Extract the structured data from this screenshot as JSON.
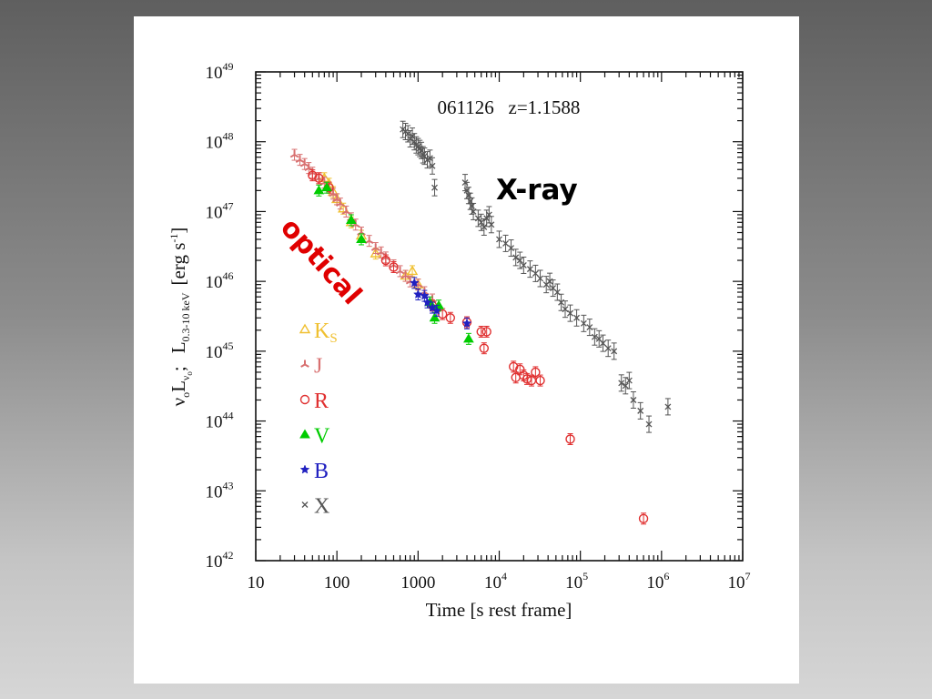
{
  "chart_data": {
    "type": "scatter",
    "title": "061126   z=1.1588",
    "xlabel": "Time [s rest frame]",
    "ylabel_parts": {
      "nu": "ν",
      "o1": "o",
      "L": "L",
      "nu_sub": "ν",
      "o2": "o",
      "semicolon": ";",
      "L2": "L",
      "band": "0.3-10 keV",
      "unit_open": "[erg s",
      "unit_exp": "-1",
      "unit_close": "]"
    },
    "x_scale": "log",
    "y_scale": "log",
    "xlim": [
      10,
      10000000
    ],
    "ylim": [
      1e+42,
      1e+49
    ],
    "x_ticks": [
      {
        "base": "10",
        "exp": ""
      },
      {
        "base": "100",
        "exp": ""
      },
      {
        "base": "1000",
        "exp": ""
      },
      {
        "base": "10",
        "exp": "4"
      },
      {
        "base": "10",
        "exp": "5"
      },
      {
        "base": "10",
        "exp": "6"
      },
      {
        "base": "10",
        "exp": "7"
      }
    ],
    "y_ticks": [
      {
        "base": "10",
        "exp": "42"
      },
      {
        "base": "10",
        "exp": "43"
      },
      {
        "base": "10",
        "exp": "44"
      },
      {
        "base": "10",
        "exp": "45"
      },
      {
        "base": "10",
        "exp": "46"
      },
      {
        "base": "10",
        "exp": "47"
      },
      {
        "base": "10",
        "exp": "48"
      },
      {
        "base": "10",
        "exp": "49"
      }
    ],
    "annotations": {
      "xray": "X-ray",
      "optical": "optical"
    },
    "legend_position": "lower-left",
    "series": [
      {
        "name": "K",
        "name_sub": "S",
        "symbol": "triangle-open",
        "color": "#f0c030",
        "points": [
          [
            70,
            3e+47
          ],
          [
            80,
            2.5e+47
          ],
          [
            90,
            1.9e+47
          ],
          [
            100,
            1.5e+47
          ],
          [
            120,
            1.1e+47
          ],
          [
            150,
            7e+46
          ],
          [
            200,
            4.5e+46
          ],
          [
            300,
            2.5e+46
          ],
          [
            700,
            1.2e+46
          ],
          [
            850,
            1.4e+46
          ],
          [
            1000,
            9e+45
          ]
        ]
      },
      {
        "name": "J",
        "name_sub": "",
        "symbol": "tri-star",
        "color": "#d87070",
        "points": [
          [
            30,
            6.5e+47
          ],
          [
            35,
            5.5e+47
          ],
          [
            40,
            4.8e+47
          ],
          [
            45,
            4.2e+47
          ],
          [
            50,
            3.6e+47
          ],
          [
            60,
            3e+47
          ],
          [
            70,
            2.6e+47
          ],
          [
            80,
            2.2e+47
          ],
          [
            90,
            1.8e+47
          ],
          [
            100,
            1.5e+47
          ],
          [
            110,
            1.3e+47
          ],
          [
            130,
            1e+47
          ],
          [
            150,
            8e+46
          ],
          [
            170,
            6.5e+46
          ],
          [
            200,
            5e+46
          ],
          [
            250,
            3.8e+46
          ],
          [
            300,
            3e+46
          ],
          [
            350,
            2.6e+46
          ],
          [
            400,
            2.2e+46
          ],
          [
            500,
            1.7e+46
          ],
          [
            600,
            1.4e+46
          ],
          [
            700,
            1.2e+46
          ],
          [
            800,
            1e+46
          ],
          [
            1000,
            9e+45
          ],
          [
            1200,
            7e+45
          ],
          [
            1500,
            5.5e+45
          ]
        ]
      },
      {
        "name": "R",
        "name_sub": "",
        "symbol": "circle-open",
        "color": "#e03030",
        "points": [
          [
            50,
            3.3e+47
          ],
          [
            60,
            3e+47
          ],
          [
            80,
            2.2e+47
          ],
          [
            400,
            2e+46
          ],
          [
            500,
            1.6e+46
          ],
          [
            1500,
            4.5e+45
          ],
          [
            2000,
            3.4e+45
          ],
          [
            2500,
            3e+45
          ],
          [
            4000,
            2.6e+45
          ],
          [
            6000,
            1.9e+45
          ],
          [
            7000,
            1.9e+45
          ],
          [
            6500,
            1.1e+45
          ],
          [
            15000,
            6e+44
          ],
          [
            18000,
            5.5e+44
          ],
          [
            16000,
            4.2e+44
          ],
          [
            20000,
            4.5e+44
          ],
          [
            22000,
            4e+44
          ],
          [
            25000,
            3.8e+44
          ],
          [
            28000,
            5e+44
          ],
          [
            32000,
            3.8e+44
          ],
          [
            75000,
            5.5e+43
          ],
          [
            600000,
            4e+42
          ]
        ]
      },
      {
        "name": "V",
        "name_sub": "",
        "symbol": "triangle-filled",
        "color": "#00cc00",
        "points": [
          [
            60,
            2e+47
          ],
          [
            75,
            2.2e+47
          ],
          [
            150,
            7.5e+46
          ],
          [
            200,
            4e+46
          ],
          [
            1400,
            5e+45
          ],
          [
            1600,
            3e+45
          ],
          [
            1800,
            4.5e+45
          ],
          [
            4200,
            1.5e+45
          ]
        ]
      },
      {
        "name": "B",
        "name_sub": "",
        "symbol": "star",
        "color": "#2020c0",
        "points": [
          [
            900,
            9.5e+45
          ],
          [
            1000,
            6.5e+45
          ],
          [
            1200,
            6.2e+45
          ],
          [
            1300,
            5e+45
          ],
          [
            1500,
            4.2e+45
          ],
          [
            1700,
            3.8e+45
          ],
          [
            4000,
            2.5e+45
          ]
        ]
      },
      {
        "name": "X",
        "name_sub": "",
        "symbol": "cross",
        "color": "#555555",
        "points": [
          [
            650,
            1.5e+48
          ],
          [
            700,
            1.4e+48
          ],
          [
            750,
            1.3e+48
          ],
          [
            800,
            1.1e+48
          ],
          [
            850,
            1.2e+48
          ],
          [
            900,
            1e+48
          ],
          [
            950,
            9e+47
          ],
          [
            1000,
            8.5e+47
          ],
          [
            1050,
            8e+47
          ],
          [
            1100,
            7.5e+47
          ],
          [
            1150,
            6.5e+47
          ],
          [
            1200,
            6.2e+47
          ],
          [
            1300,
            5.5e+47
          ],
          [
            1400,
            5.8e+47
          ],
          [
            1500,
            4.5e+47
          ],
          [
            1600,
            2.2e+47
          ],
          [
            3800,
            2.6e+47
          ],
          [
            4000,
            2e+47
          ],
          [
            4200,
            1.7e+47
          ],
          [
            4400,
            1.4e+47
          ],
          [
            4600,
            1.2e+47
          ],
          [
            4800,
            1e+47
          ],
          [
            5500,
            8e+46
          ],
          [
            6000,
            7e+46
          ],
          [
            6500,
            6e+46
          ],
          [
            7000,
            8e+46
          ],
          [
            7500,
            9e+46
          ],
          [
            8000,
            6.5e+46
          ],
          [
            10000,
            4e+46
          ],
          [
            12000,
            3.5e+46
          ],
          [
            14000,
            3e+46
          ],
          [
            16000,
            2.2e+46
          ],
          [
            18000,
            2e+46
          ],
          [
            20000,
            1.7e+46
          ],
          [
            24000,
            1.5e+46
          ],
          [
            28000,
            1.3e+46
          ],
          [
            32000,
            1.1e+46
          ],
          [
            38000,
            9e+45
          ],
          [
            42000,
            1e+46
          ],
          [
            46000,
            8e+45
          ],
          [
            52000,
            7e+45
          ],
          [
            58000,
            5e+45
          ],
          [
            65000,
            4e+45
          ],
          [
            75000,
            3.5e+45
          ],
          [
            90000,
            3e+45
          ],
          [
            110000,
            2.5e+45
          ],
          [
            130000,
            2.2e+45
          ],
          [
            150000,
            1.6e+45
          ],
          [
            170000,
            1.5e+45
          ],
          [
            190000,
            1.3e+45
          ],
          [
            220000,
            1.1e+45
          ],
          [
            260000,
            1e+45
          ],
          [
            320000,
            3.5e+44
          ],
          [
            360000,
            3.2e+44
          ],
          [
            400000,
            3.8e+44
          ],
          [
            450000,
            2e+44
          ],
          [
            550000,
            1.4e+44
          ],
          [
            700000,
            9e+43
          ],
          [
            1200000,
            1.6e+44
          ]
        ]
      }
    ]
  }
}
